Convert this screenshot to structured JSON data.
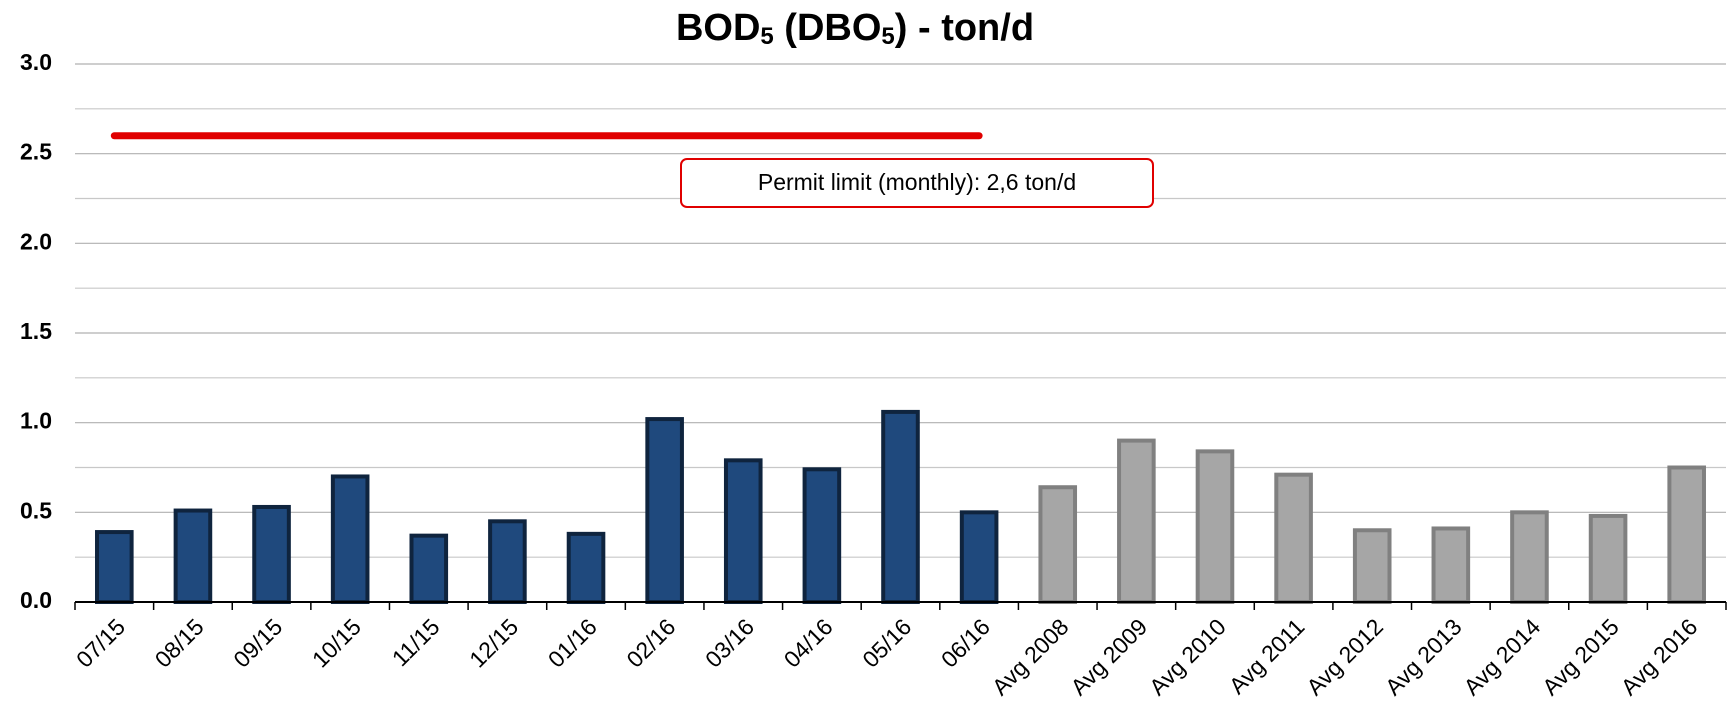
{
  "chart_data": {
    "type": "bar",
    "title": [
      "BOD",
      "5",
      " (DBO",
      "5",
      ")  - ton/d"
    ],
    "categories": [
      "07/15",
      "08/15",
      "09/15",
      "10/15",
      "11/15",
      "12/15",
      "01/16",
      "02/16",
      "03/16",
      "04/16",
      "05/16",
      "06/16",
      "Avg 2008",
      "Avg 2009",
      "Avg 2010",
      "Avg 2011",
      "Avg 2012",
      "Avg 2013",
      "Avg 2014",
      "Avg 2015",
      "Avg 2016"
    ],
    "values": [
      0.39,
      0.51,
      0.53,
      0.7,
      0.37,
      0.45,
      0.38,
      1.02,
      0.79,
      0.74,
      1.06,
      0.5,
      0.64,
      0.9,
      0.84,
      0.71,
      0.4,
      0.41,
      0.5,
      0.48,
      0.75
    ],
    "bar_colors": [
      "#1f497d",
      "#1f497d",
      "#1f497d",
      "#1f497d",
      "#1f497d",
      "#1f497d",
      "#1f497d",
      "#1f497d",
      "#1f497d",
      "#1f497d",
      "#1f497d",
      "#1f497d",
      "#a6a6a6",
      "#a6a6a6",
      "#a6a6a6",
      "#a6a6a6",
      "#a6a6a6",
      "#a6a6a6",
      "#a6a6a6",
      "#a6a6a6",
      "#a6a6a6"
    ],
    "border_colors": [
      "#0f243e",
      "#0f243e",
      "#0f243e",
      "#0f243e",
      "#0f243e",
      "#0f243e",
      "#0f243e",
      "#0f243e",
      "#0f243e",
      "#0f243e",
      "#0f243e",
      "#0f243e",
      "#808080",
      "#808080",
      "#808080",
      "#808080",
      "#808080",
      "#808080",
      "#808080",
      "#808080",
      "#808080"
    ],
    "ylim": [
      0,
      3
    ],
    "yticks": [
      {
        "value": 0,
        "label": "0.0"
      },
      {
        "value": 0.5,
        "label": "0.5"
      },
      {
        "value": 1,
        "label": "1.0"
      },
      {
        "value": 1.5,
        "label": "1.5"
      },
      {
        "value": 2,
        "label": "2.0"
      },
      {
        "value": 2.5,
        "label": "2.5"
      },
      {
        "value": 3,
        "label": "3.0"
      }
    ],
    "minor_yticks": [
      0.25,
      0.75,
      1.25,
      1.75,
      2.25,
      2.75
    ],
    "grid": true,
    "limit": {
      "value": 2.6,
      "color": "#e00000",
      "from": "07/15",
      "to": "06/16",
      "label": "Permit limit (monthly): 2,6 ton/d"
    }
  }
}
